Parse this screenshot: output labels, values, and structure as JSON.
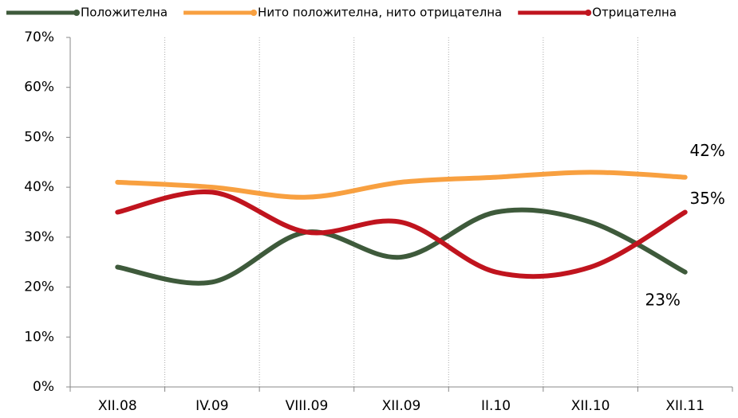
{
  "chart_data": {
    "type": "line",
    "categories": [
      "XII.08",
      "IV.09",
      "VIII.09",
      "XII.09",
      "II.10",
      "XII.10",
      "XII.11"
    ],
    "series": [
      {
        "name": "Положителна",
        "color": "#3e5a3b",
        "values": [
          24,
          21,
          31,
          26,
          35,
          33,
          23
        ],
        "value_labels": [
          null,
          null,
          null,
          null,
          null,
          null,
          "23%"
        ]
      },
      {
        "name": "Нито положителна, нито отрицателна",
        "color": "#f8a040",
        "values": [
          41,
          40,
          38,
          41,
          42,
          43,
          42
        ],
        "value_labels": [
          null,
          null,
          null,
          null,
          null,
          null,
          "42%"
        ]
      },
      {
        "name": "Отрицателна",
        "color": "#c0141e",
        "values": [
          35,
          39,
          31,
          33,
          23,
          24,
          35
        ],
        "value_labels": [
          null,
          null,
          null,
          null,
          null,
          null,
          "35%"
        ]
      }
    ],
    "ylim": [
      0,
      70
    ],
    "yticks": [
      {
        "value": 0,
        "label": "0%"
      },
      {
        "value": 10,
        "label": "10%"
      },
      {
        "value": 20,
        "label": "20%"
      },
      {
        "value": 30,
        "label": "30%"
      },
      {
        "value": 40,
        "label": "40%"
      },
      {
        "value": 50,
        "label": "50%"
      },
      {
        "value": 60,
        "label": "60%"
      },
      {
        "value": 70,
        "label": "70%"
      }
    ],
    "legend": "top"
  }
}
